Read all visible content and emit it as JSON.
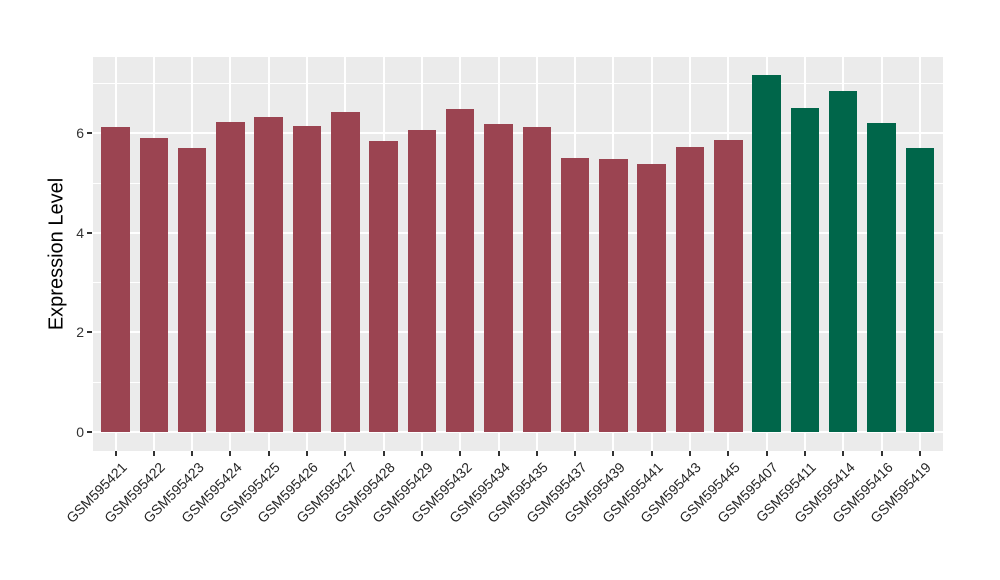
{
  "chart_data": {
    "type": "bar",
    "title": "",
    "xlabel": "",
    "ylabel": "Expression Level",
    "ylim": [
      0,
      7.53
    ],
    "ytick_values": [
      0,
      2,
      4,
      6
    ],
    "ytick_labels": [
      "0",
      "2",
      "4",
      "6"
    ],
    "minor_gridline_values": [
      1,
      3,
      5,
      7
    ],
    "grid": "on",
    "legend_position": "none",
    "panel_background": "#EBEBEB",
    "gridline_color": "#FFFFFF",
    "axis_text_color": "#333333",
    "categories": [
      "GSM595421",
      "GSM595422",
      "GSM595423",
      "GSM595424",
      "GSM595425",
      "GSM595426",
      "GSM595427",
      "GSM595428",
      "GSM595429",
      "GSM595432",
      "GSM595434",
      "GSM595435",
      "GSM595437",
      "GSM595439",
      "GSM595441",
      "GSM595443",
      "GSM595445",
      "GSM595407",
      "GSM595411",
      "GSM595414",
      "GSM595416",
      "GSM595419"
    ],
    "values": [
      6.12,
      5.9,
      5.7,
      6.22,
      6.33,
      6.14,
      6.43,
      5.84,
      6.06,
      6.49,
      6.18,
      6.12,
      5.5,
      5.48,
      5.38,
      5.72,
      5.86,
      7.17,
      6.51,
      6.85,
      6.2,
      5.7
    ],
    "bar_color_keys": [
      "maroon",
      "maroon",
      "maroon",
      "maroon",
      "maroon",
      "maroon",
      "maroon",
      "maroon",
      "maroon",
      "maroon",
      "maroon",
      "maroon",
      "maroon",
      "maroon",
      "maroon",
      "maroon",
      "maroon",
      "green",
      "green",
      "green",
      "green",
      "green"
    ],
    "colors": {
      "maroon": "#9B4451",
      "green": "#00664A"
    }
  }
}
